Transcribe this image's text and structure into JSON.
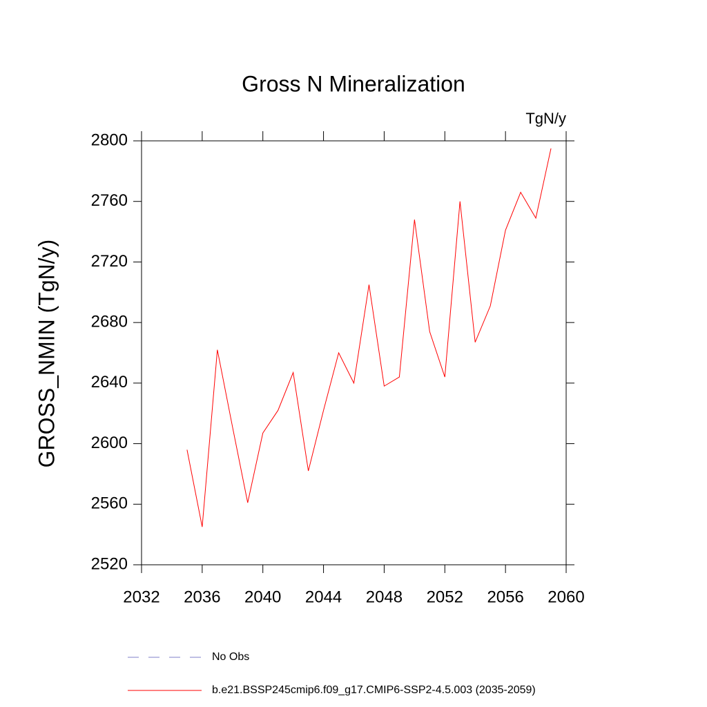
{
  "chart_data": {
    "type": "line",
    "title": "Gross N Mineralization",
    "units": "TgN/y",
    "y_label": "GROSS_NMIN  (TgN/y)",
    "x": [
      2035,
      2036,
      2037,
      2038,
      2039,
      2040,
      2041,
      2042,
      2043,
      2044,
      2045,
      2046,
      2047,
      2048,
      2049,
      2050,
      2051,
      2052,
      2053,
      2054,
      2055,
      2056,
      2057,
      2058,
      2059
    ],
    "series": [
      {
        "name": "No Obs",
        "color": "#7f7fc8",
        "dash": true,
        "values": [
          null,
          null,
          null,
          null,
          null,
          null,
          null,
          null,
          null,
          null,
          null,
          null,
          null,
          null,
          null,
          null,
          null,
          null,
          null,
          null,
          null,
          null,
          null,
          null,
          null
        ]
      },
      {
        "name": "b.e21.BSSP245cmip6.f09_g17.CMIP6-SSP2-4.5.003 (2035-2059)",
        "color": "#ff0000",
        "dash": false,
        "values": [
          2596,
          2545,
          2662,
          2611,
          2561,
          2607,
          2622,
          2647,
          2582,
          2622,
          2660,
          2640,
          2705,
          2638,
          2644,
          2748,
          2674,
          2644,
          2760,
          2667,
          2691,
          2741,
          2766,
          2749,
          2795
        ]
      }
    ],
    "xlim": [
      2032,
      2060
    ],
    "xticks": [
      2032,
      2036,
      2040,
      2044,
      2048,
      2052,
      2056,
      2060
    ],
    "ylim": [
      2520,
      2800
    ],
    "yticks": [
      2520,
      2560,
      2600,
      2640,
      2680,
      2720,
      2760,
      2800
    ],
    "grid": false
  }
}
